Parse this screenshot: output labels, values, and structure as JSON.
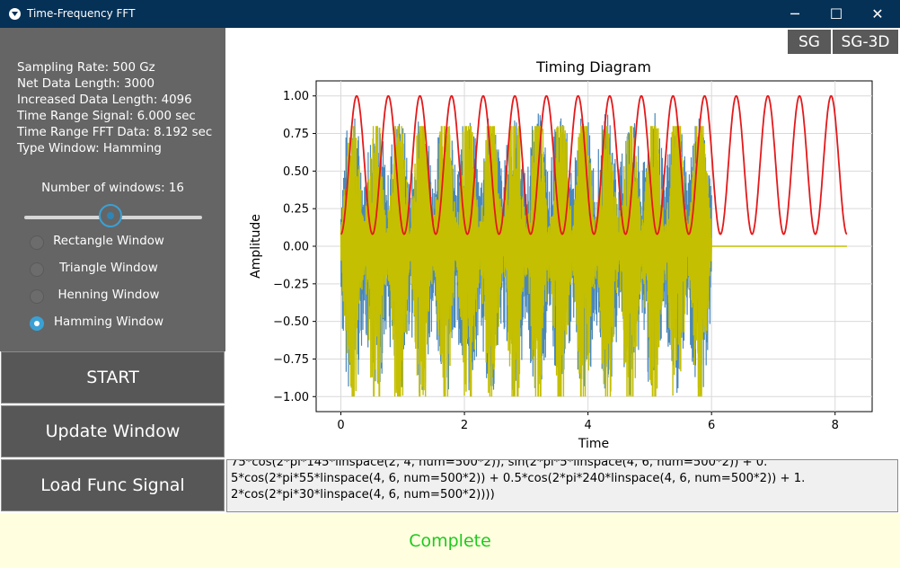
{
  "window": {
    "title": "Time-Frequency FFT",
    "minimize_glyph": "─",
    "maximize_glyph": "☐",
    "close_glyph": "✕"
  },
  "info": {
    "sampling_rate": "Sampling Rate: 500 Gz",
    "net_data_length": "Net Data Length: 3000",
    "increased_data_length": "Increased Data Length: 4096",
    "time_range_signal": "Time Range Signal: 6.000 sec",
    "time_range_fft": "Time Range FFT Data: 8.192 sec",
    "type_window": "Type Window: Hamming"
  },
  "windows_control": {
    "label": "Number of windows: 16",
    "value": 16,
    "fraction": 0.5
  },
  "window_types": [
    {
      "label": "Rectangle Window",
      "selected": false
    },
    {
      "label": "Triangle Window",
      "selected": false
    },
    {
      "label": "Henning Window",
      "selected": false
    },
    {
      "label": "Hamming Window",
      "selected": true
    }
  ],
  "buttons": {
    "start": "START",
    "update_window": "Update Window",
    "load_func_signal": "Load Func Signal",
    "sg": "SG",
    "sg3d": "SG-3D"
  },
  "func_text": {
    "line1": "75*cos(2*pi*145*linspace(2, 4, num=500*2)), sin(2*pi*5*linspace(4, 6, num=500*2)) + 0.",
    "line2": "5*cos(2*pi*55*linspace(4, 6, num=500*2)) + 0.5*cos(2*pi*240*linspace(4, 6, num=500*2)) + 1.",
    "line3": "2*cos(2*pi*30*linspace(4, 6, num=500*2))))"
  },
  "status": "Complete",
  "colors": {
    "signal": "#4a87b8",
    "windowed": "#c4bf00",
    "window_fn": "#e31a1c",
    "status_text": "#1ec91e",
    "accent": "#3aa1d5"
  },
  "chart_data": {
    "type": "line",
    "title": "Timing Diagram",
    "xlabel": "Time",
    "ylabel": "Amplitude",
    "xlim": [
      -0.4,
      8.6
    ],
    "ylim": [
      -1.1,
      1.1
    ],
    "xticks": [
      "0",
      "2",
      "4",
      "6",
      "8"
    ],
    "xtick_values": [
      0,
      2,
      4,
      6,
      8
    ],
    "yticks": [
      "−1.00",
      "−0.75",
      "−0.50",
      "−0.25",
      "0.00",
      "0.25",
      "0.50",
      "0.75",
      "1.00"
    ],
    "ytick_values": [
      -1,
      -0.75,
      -0.5,
      -0.25,
      0,
      0.25,
      0.5,
      0.75,
      1
    ],
    "grid": true,
    "series": [
      {
        "color": "#4a87b8",
        "kind": "signal",
        "x_range": [
          0,
          6
        ],
        "envelope": [
          -1.0,
          0.9
        ]
      },
      {
        "color": "#c4bf00",
        "kind": "windowed signal",
        "x_range": [
          0,
          8.192
        ],
        "envelope": [
          -1.0,
          0.8
        ],
        "zero_after": 6
      },
      {
        "color": "#e31a1c",
        "kind": "window function",
        "x_range": [
          0,
          8.192
        ],
        "range": [
          0.08,
          1.0
        ],
        "periods": 16
      }
    ]
  }
}
